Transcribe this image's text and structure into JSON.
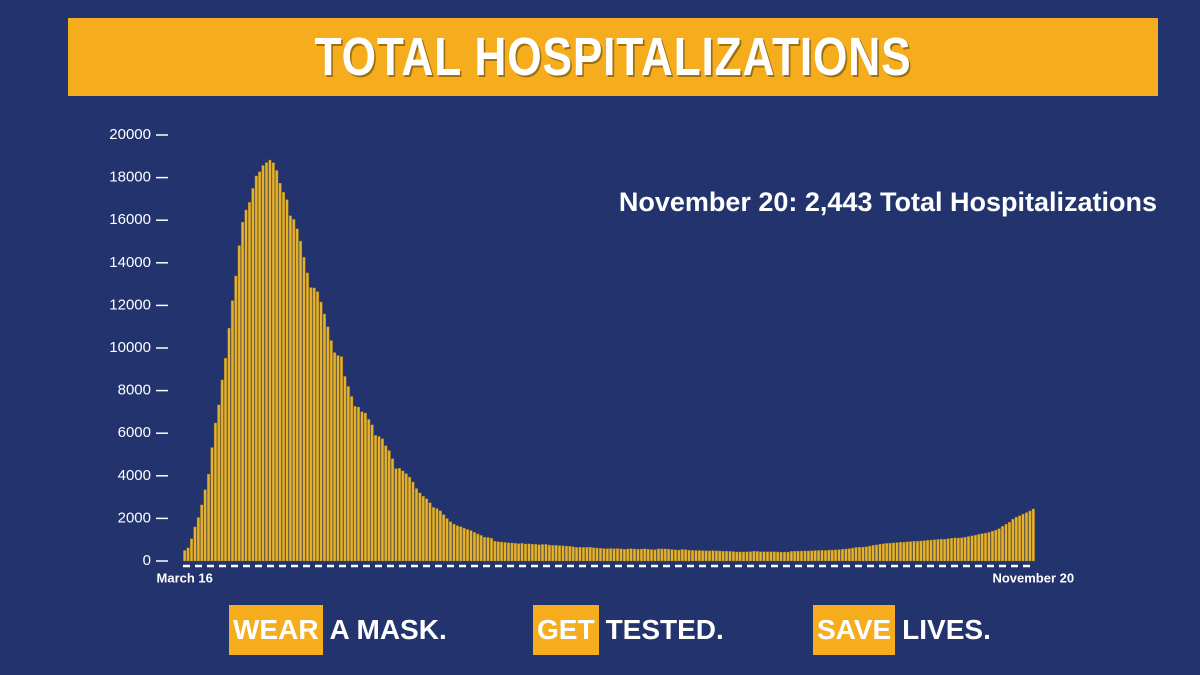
{
  "chart_data": {
    "type": "bar",
    "title": "TOTAL HOSPITALIZATIONS",
    "annotation": "November 20: 2,443 Total Hospitalizations",
    "color": "#e6b22e",
    "ylim": [
      0,
      20000
    ],
    "yticks": [
      0,
      2000,
      4000,
      6000,
      8000,
      10000,
      12000,
      14000,
      16000,
      18000,
      20000
    ],
    "categories": [
      "March 16",
      null,
      null,
      null,
      null,
      null,
      null,
      null,
      null,
      null,
      null,
      null,
      null,
      null,
      null,
      null,
      null,
      null,
      null,
      null,
      null,
      null,
      null,
      null,
      null,
      null,
      null,
      null,
      null,
      null,
      null,
      null,
      null,
      null,
      null,
      null,
      null,
      null,
      null,
      null,
      null,
      null,
      null,
      null,
      null,
      null,
      null,
      null,
      null,
      null,
      null,
      null,
      null,
      null,
      null,
      null,
      null,
      null,
      null,
      null,
      null,
      null,
      null,
      null,
      null,
      null,
      null,
      null,
      null,
      null,
      null,
      null,
      null,
      null,
      null,
      null,
      null,
      null,
      null,
      null,
      null,
      null,
      null,
      null,
      null,
      null,
      null,
      null,
      null,
      null,
      null,
      null,
      null,
      null,
      null,
      null,
      null,
      null,
      null,
      null,
      null,
      null,
      null,
      null,
      null,
      null,
      null,
      null,
      null,
      null,
      null,
      null,
      null,
      null,
      null,
      null,
      null,
      null,
      null,
      null,
      null,
      null,
      null,
      null,
      null,
      null,
      null,
      null,
      null,
      null,
      null,
      null,
      null,
      null,
      null,
      null,
      null,
      null,
      null,
      null,
      null,
      null,
      null,
      null,
      null,
      null,
      null,
      null,
      null,
      null,
      null,
      null,
      null,
      null,
      null,
      null,
      null,
      null,
      null,
      null,
      null,
      null,
      null,
      null,
      null,
      null,
      null,
      null,
      null,
      null,
      null,
      null,
      null,
      null,
      null,
      null,
      null,
      null,
      null,
      null,
      null,
      null,
      null,
      null,
      null,
      null,
      null,
      null,
      null,
      null,
      null,
      null,
      null,
      null,
      null,
      null,
      null,
      null,
      null,
      null,
      null,
      null,
      null,
      null,
      null,
      null,
      null,
      null,
      null,
      null,
      null,
      null,
      null,
      null,
      null,
      null,
      null,
      null,
      null,
      null,
      null,
      null,
      null,
      null,
      null,
      null,
      null,
      null,
      null,
      null,
      null,
      null,
      null,
      null,
      null,
      null,
      null,
      null,
      null,
      null,
      null,
      null,
      null,
      null,
      null,
      null,
      null,
      null,
      null,
      "November 20"
    ],
    "values": [
      496,
      617,
      1042,
      1603,
      2043,
      2635,
      3343,
      4079,
      5327,
      6481,
      7328,
      8503,
      9517,
      10929,
      12226,
      13383,
      14810,
      15905,
      16479,
      16837,
      17493,
      18079,
      18279,
      18569,
      18707,
      18825,
      18697,
      18335,
      17735,
      17316,
      16967,
      16213,
      16044,
      15599,
      15021,
      14258,
      13524,
      12839,
      12819,
      12646,
      12159,
      11598,
      10993,
      10350,
      9786,
      9647,
      9600,
      8665,
      8196,
      7726,
      7262,
      7226,
      7004,
      6946,
      6646,
      6394,
      5897,
      5845,
      5735,
      5410,
      5187,
      4804,
      4338,
      4348,
      4233,
      4102,
      3943,
      3711,
      3402,
      3200,
      3037,
      2921,
      2730,
      2518,
      2460,
      2355,
      2179,
      1994,
      1842,
      1734,
      1657,
      1608,
      1538,
      1479,
      1430,
      1344,
      1268,
      1201,
      1119,
      1105,
      1067,
      924,
      905,
      891,
      873,
      853,
      848,
      832,
      817,
      827,
      799,
      806,
      790,
      784,
      768,
      776,
      778,
      750,
      733,
      741,
      722,
      716,
      701,
      690,
      671,
      638,
      646,
      640,
      642,
      648,
      627,
      608,
      598,
      586,
      581,
      586,
      577,
      585,
      574,
      554,
      566,
      581,
      561,
      555,
      561,
      572,
      556,
      539,
      536,
      571,
      569,
      567,
      560,
      539,
      523,
      514,
      543,
      534,
      509,
      500,
      493,
      491,
      487,
      480,
      475,
      489,
      484,
      472,
      458,
      457,
      453,
      444,
      426,
      429,
      422,
      435,
      440,
      461,
      451,
      438,
      436,
      439,
      434,
      437,
      427,
      415,
      422,
      419,
      452,
      457,
      465,
      469,
      471,
      472,
      484,
      490,
      494,
      501,
      497,
      512,
      517,
      523,
      533,
      551,
      565,
      582,
      608,
      637,
      648,
      651,
      668,
      701,
      741,
      754,
      789,
      812,
      828,
      839,
      849,
      863,
      880,
      879,
      903,
      913,
      925,
      927,
      941,
      959,
      970,
      984,
      1002,
      1012,
      1027,
      1021,
      1048,
      1065,
      1085,
      1081,
      1096,
      1117,
      1151,
      1182,
      1209,
      1253,
      1284,
      1311,
      1345,
      1404,
      1452,
      1522,
      1628,
      1727,
      1820,
      1968,
      2061,
      2124,
      2202,
      2276,
      2348,
      2443
    ]
  },
  "footer": [
    {
      "highlight": "WEAR",
      "text": "A MASK."
    },
    {
      "highlight": "GET",
      "text": "TESTED."
    },
    {
      "highlight": "SAVE",
      "text": "LIVES."
    }
  ]
}
